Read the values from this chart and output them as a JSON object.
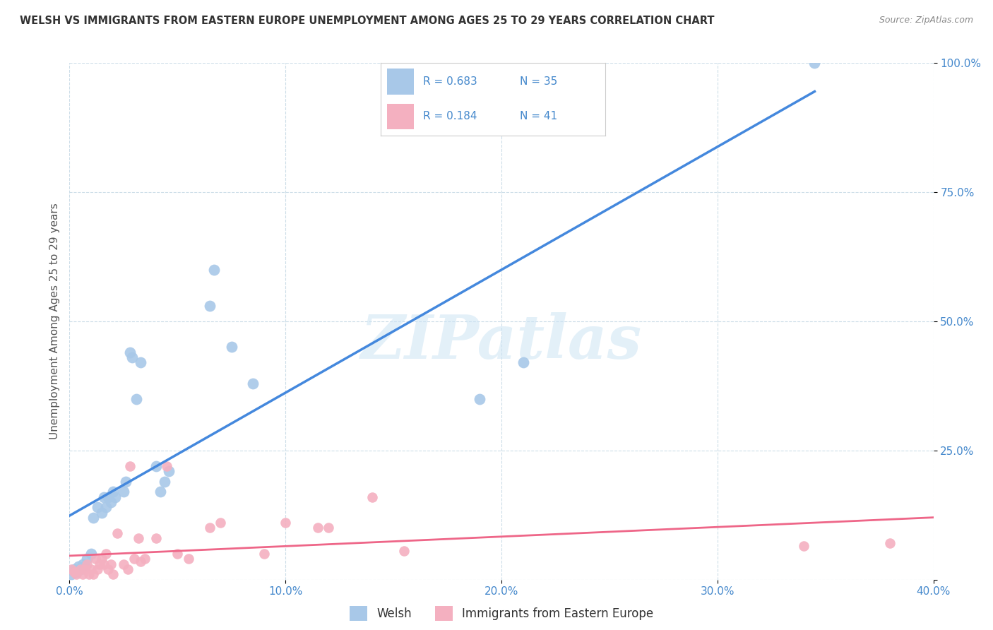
{
  "title": "WELSH VS IMMIGRANTS FROM EASTERN EUROPE UNEMPLOYMENT AMONG AGES 25 TO 29 YEARS CORRELATION CHART",
  "source": "Source: ZipAtlas.com",
  "ylabel": "Unemployment Among Ages 25 to 29 years",
  "xlim": [
    0.0,
    0.4
  ],
  "ylim": [
    0.0,
    1.0
  ],
  "xticks": [
    0.0,
    0.1,
    0.2,
    0.3,
    0.4
  ],
  "xtick_labels": [
    "0.0%",
    "10.0%",
    "20.0%",
    "30.0%",
    "40.0%"
  ],
  "yticks": [
    0.0,
    0.25,
    0.5,
    0.75,
    1.0
  ],
  "ytick_labels": [
    "",
    "25.0%",
    "50.0%",
    "75.0%",
    "100.0%"
  ],
  "welsh_R": 0.683,
  "welsh_N": 35,
  "immigrant_R": 0.184,
  "immigrant_N": 41,
  "welsh_color": "#a8c8e8",
  "immigrant_color": "#f4b0c0",
  "trend_blue": "#4488dd",
  "trend_pink": "#ee6688",
  "legend_label_blue": "Welsh",
  "legend_label_pink": "Immigrants from Eastern Europe",
  "watermark": "ZIPatlas",
  "welsh_x": [
    0.001,
    0.002,
    0.003,
    0.004,
    0.005,
    0.006,
    0.007,
    0.008,
    0.01,
    0.011,
    0.013,
    0.015,
    0.016,
    0.017,
    0.018,
    0.019,
    0.02,
    0.021,
    0.025,
    0.026,
    0.028,
    0.029,
    0.031,
    0.033,
    0.04,
    0.042,
    0.044,
    0.046,
    0.065,
    0.067,
    0.075,
    0.085,
    0.19,
    0.21,
    0.345
  ],
  "welsh_y": [
    0.01,
    0.02,
    0.015,
    0.025,
    0.02,
    0.03,
    0.025,
    0.04,
    0.05,
    0.12,
    0.14,
    0.13,
    0.16,
    0.14,
    0.16,
    0.15,
    0.17,
    0.16,
    0.17,
    0.19,
    0.44,
    0.43,
    0.35,
    0.42,
    0.22,
    0.17,
    0.19,
    0.21,
    0.53,
    0.6,
    0.45,
    0.38,
    0.35,
    0.42,
    1.0
  ],
  "immigrant_x": [
    0.001,
    0.002,
    0.003,
    0.005,
    0.006,
    0.007,
    0.008,
    0.009,
    0.01,
    0.011,
    0.012,
    0.013,
    0.014,
    0.015,
    0.016,
    0.017,
    0.018,
    0.019,
    0.02,
    0.022,
    0.025,
    0.027,
    0.028,
    0.03,
    0.032,
    0.033,
    0.035,
    0.04,
    0.045,
    0.05,
    0.055,
    0.065,
    0.07,
    0.09,
    0.1,
    0.115,
    0.12,
    0.14,
    0.155,
    0.34,
    0.38
  ],
  "immigrant_y": [
    0.02,
    0.015,
    0.01,
    0.02,
    0.01,
    0.02,
    0.03,
    0.01,
    0.02,
    0.01,
    0.04,
    0.02,
    0.03,
    0.04,
    0.03,
    0.05,
    0.02,
    0.03,
    0.01,
    0.09,
    0.03,
    0.02,
    0.22,
    0.04,
    0.08,
    0.035,
    0.04,
    0.08,
    0.22,
    0.05,
    0.04,
    0.1,
    0.11,
    0.05,
    0.11,
    0.1,
    0.1,
    0.16,
    0.055,
    0.065,
    0.07
  ],
  "bg_color": "#ffffff",
  "grid_color": "#ccdde8",
  "axis_color": "#4488cc",
  "title_color": "#333333",
  "source_color": "#888888"
}
